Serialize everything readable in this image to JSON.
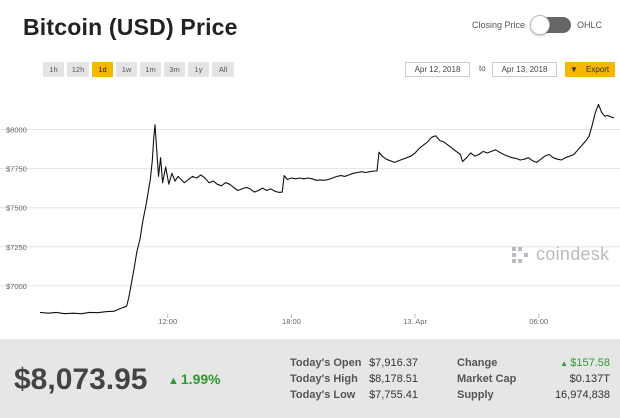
{
  "title": "Bitcoin (USD) Price",
  "toggle": {
    "left_label": "Closing Price",
    "right_label": "OHLC"
  },
  "ranges": [
    "1h",
    "12h",
    "1d",
    "1w",
    "1m",
    "3m",
    "1y",
    "All"
  ],
  "active_range": "1d",
  "date_from": "Apr 12, 2018",
  "to_label": "to",
  "date_to": "Apr 13, 2018",
  "export_label": "Export",
  "watermark": "coindesk",
  "colors": {
    "accent": "#f5b700",
    "positive": "#2f9a2f",
    "line": "#111111"
  },
  "chart_data": {
    "type": "line",
    "title": "",
    "xlabel": "",
    "ylabel": "",
    "ylim": [
      6820,
      8240
    ],
    "y_ticks": [
      7000,
      7250,
      7500,
      7750,
      8000
    ],
    "y_tick_labels": [
      "$7000",
      "$7250",
      "$7500",
      "$7750",
      "$8000"
    ],
    "x_ticks": [
      {
        "label": "12:00",
        "x": 12.0
      },
      {
        "label": "18:00",
        "x": 18.0
      },
      {
        "label": "13. Apr",
        "x": 24.0
      },
      {
        "label": "06:00",
        "x": 30.0
      }
    ],
    "xlim": [
      5.8,
      33.7
    ],
    "grid": true,
    "series": [
      {
        "points": [
          [
            5.8,
            6830
          ],
          [
            6.2,
            6825
          ],
          [
            6.6,
            6830
          ],
          [
            7.0,
            6822
          ],
          [
            7.4,
            6825
          ],
          [
            7.8,
            6822
          ],
          [
            8.2,
            6830
          ],
          [
            8.6,
            6828
          ],
          [
            9.0,
            6835
          ],
          [
            9.4,
            6838
          ],
          [
            9.7,
            6855
          ],
          [
            10.0,
            6870
          ],
          [
            10.1,
            6920
          ],
          [
            10.2,
            6990
          ],
          [
            10.35,
            7100
          ],
          [
            10.5,
            7220
          ],
          [
            10.65,
            7300
          ],
          [
            10.8,
            7420
          ],
          [
            10.95,
            7520
          ],
          [
            11.05,
            7600
          ],
          [
            11.15,
            7680
          ],
          [
            11.25,
            7800
          ],
          [
            11.32,
            7950
          ],
          [
            11.38,
            8030
          ],
          [
            11.45,
            7900
          ],
          [
            11.55,
            7700
          ],
          [
            11.65,
            7820
          ],
          [
            11.75,
            7660
          ],
          [
            11.9,
            7760
          ],
          [
            12.05,
            7650
          ],
          [
            12.2,
            7720
          ],
          [
            12.35,
            7670
          ],
          [
            12.5,
            7700
          ],
          [
            12.65,
            7680
          ],
          [
            12.8,
            7660
          ],
          [
            13.0,
            7680
          ],
          [
            13.2,
            7700
          ],
          [
            13.4,
            7690
          ],
          [
            13.6,
            7710
          ],
          [
            13.8,
            7690
          ],
          [
            14.0,
            7660
          ],
          [
            14.2,
            7670
          ],
          [
            14.4,
            7650
          ],
          [
            14.6,
            7640
          ],
          [
            14.8,
            7660
          ],
          [
            15.0,
            7650
          ],
          [
            15.2,
            7630
          ],
          [
            15.4,
            7610
          ],
          [
            15.6,
            7620
          ],
          [
            15.8,
            7630
          ],
          [
            16.0,
            7620
          ],
          [
            16.2,
            7600
          ],
          [
            16.4,
            7610
          ],
          [
            16.6,
            7625
          ],
          [
            16.8,
            7610
          ],
          [
            17.0,
            7620
          ],
          [
            17.2,
            7605
          ],
          [
            17.4,
            7598
          ],
          [
            17.55,
            7600
          ],
          [
            17.65,
            7705
          ],
          [
            17.8,
            7680
          ],
          [
            18.0,
            7690
          ],
          [
            18.2,
            7685
          ],
          [
            18.4,
            7690
          ],
          [
            18.6,
            7685
          ],
          [
            18.8,
            7690
          ],
          [
            19.0,
            7685
          ],
          [
            19.2,
            7675
          ],
          [
            19.4,
            7678
          ],
          [
            19.6,
            7675
          ],
          [
            19.8,
            7680
          ],
          [
            20.0,
            7690
          ],
          [
            20.2,
            7700
          ],
          [
            20.4,
            7705
          ],
          [
            20.6,
            7700
          ],
          [
            20.8,
            7710
          ],
          [
            21.0,
            7720
          ],
          [
            21.2,
            7725
          ],
          [
            21.4,
            7730
          ],
          [
            21.6,
            7725
          ],
          [
            21.8,
            7730
          ],
          [
            22.0,
            7735
          ],
          [
            22.15,
            7735
          ],
          [
            22.25,
            7855
          ],
          [
            22.4,
            7830
          ],
          [
            22.6,
            7810
          ],
          [
            22.8,
            7800
          ],
          [
            23.0,
            7790
          ],
          [
            23.2,
            7800
          ],
          [
            23.4,
            7810
          ],
          [
            23.6,
            7820
          ],
          [
            23.8,
            7830
          ],
          [
            24.0,
            7850
          ],
          [
            24.2,
            7880
          ],
          [
            24.4,
            7900
          ],
          [
            24.6,
            7920
          ],
          [
            24.8,
            7950
          ],
          [
            25.0,
            7960
          ],
          [
            25.2,
            7930
          ],
          [
            25.4,
            7920
          ],
          [
            25.6,
            7900
          ],
          [
            25.8,
            7880
          ],
          [
            26.0,
            7860
          ],
          [
            26.2,
            7840
          ],
          [
            26.3,
            7795
          ],
          [
            26.5,
            7820
          ],
          [
            26.7,
            7850
          ],
          [
            26.9,
            7830
          ],
          [
            27.1,
            7840
          ],
          [
            27.3,
            7860
          ],
          [
            27.5,
            7850
          ],
          [
            27.7,
            7860
          ],
          [
            27.9,
            7870
          ],
          [
            28.1,
            7855
          ],
          [
            28.3,
            7840
          ],
          [
            28.5,
            7830
          ],
          [
            28.7,
            7820
          ],
          [
            28.9,
            7815
          ],
          [
            29.1,
            7805
          ],
          [
            29.3,
            7810
          ],
          [
            29.5,
            7820
          ],
          [
            29.7,
            7800
          ],
          [
            29.9,
            7790
          ],
          [
            30.1,
            7810
          ],
          [
            30.3,
            7830
          ],
          [
            30.5,
            7840
          ],
          [
            30.7,
            7820
          ],
          [
            30.9,
            7810
          ],
          [
            31.1,
            7805
          ],
          [
            31.3,
            7820
          ],
          [
            31.5,
            7830
          ],
          [
            31.7,
            7840
          ],
          [
            31.9,
            7870
          ],
          [
            32.1,
            7900
          ],
          [
            32.3,
            7930
          ],
          [
            32.45,
            7960
          ],
          [
            32.6,
            8030
          ],
          [
            32.75,
            8110
          ],
          [
            32.9,
            8160
          ],
          [
            33.05,
            8110
          ],
          [
            33.2,
            8085
          ],
          [
            33.35,
            8090
          ],
          [
            33.5,
            8080
          ],
          [
            33.65,
            8075
          ]
        ]
      }
    ]
  },
  "summary": {
    "price": "$8,073.95",
    "change_pct": "1.99%",
    "stats": [
      {
        "label": "Today's Open",
        "value": "$7,916.37"
      },
      {
        "label": "Today's High",
        "value": "$8,178.51"
      },
      {
        "label": "Today's Low",
        "value": "$7,755.41"
      },
      {
        "label": "Change",
        "value": "$157.58"
      },
      {
        "label": "Market Cap",
        "value": "$0.137T"
      },
      {
        "label": "Supply",
        "value": "16,974,838"
      }
    ]
  }
}
